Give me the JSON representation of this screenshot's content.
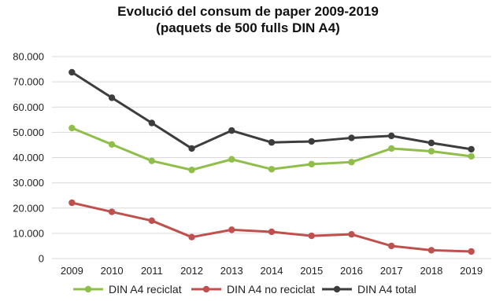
{
  "chart_data": {
    "type": "line",
    "title_lines": [
      "Evolució del consum de paper 2009-2019",
      "(paquets de 500 fulls DIN A4)"
    ],
    "xlabel": "",
    "ylabel": "",
    "categories": [
      "2009",
      "2010",
      "2011",
      "2012",
      "2013",
      "2014",
      "2015",
      "2016",
      "2017",
      "2018",
      "2019"
    ],
    "ylim": [
      0,
      80000
    ],
    "y_ticks": [
      0,
      10000,
      20000,
      30000,
      40000,
      50000,
      60000,
      70000,
      80000
    ],
    "y_tick_labels": [
      "0",
      "10.000",
      "20.000",
      "30.000",
      "40.000",
      "50.000",
      "60.000",
      "70.000",
      "80.000"
    ],
    "grid": "horizontal",
    "legend_position": "bottom",
    "series": [
      {
        "name": "DIN A4 reciclat",
        "color": "#8fbf4a",
        "values": [
          51700,
          45200,
          38700,
          35100,
          39300,
          35400,
          37400,
          38200,
          43600,
          42500,
          40500
        ]
      },
      {
        "name": "DIN A4 no reciclat",
        "color": "#c0504d",
        "values": [
          22100,
          18500,
          15000,
          8500,
          11400,
          10600,
          9000,
          9600,
          5000,
          3300,
          2800
        ]
      },
      {
        "name": "DIN A4 total",
        "color": "#3d3d3d",
        "values": [
          73800,
          63700,
          53700,
          43600,
          50700,
          46000,
          46400,
          47800,
          48600,
          45800,
          43300
        ]
      }
    ]
  }
}
